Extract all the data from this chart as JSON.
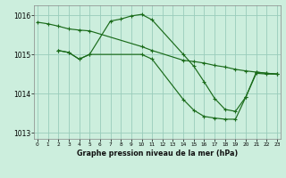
{
  "xlabel": "Graphe pression niveau de la mer (hPa)",
  "ylim": [
    1012.85,
    1016.25
  ],
  "xlim": [
    -0.3,
    23.3
  ],
  "yticks": [
    1013,
    1014,
    1015,
    1016
  ],
  "xticks": [
    0,
    1,
    2,
    3,
    4,
    5,
    6,
    7,
    8,
    9,
    10,
    11,
    12,
    13,
    14,
    15,
    16,
    17,
    18,
    19,
    20,
    21,
    22,
    23
  ],
  "background_color": "#cceedd",
  "grid_color": "#99ccbb",
  "line_color": "#1a6b1a",
  "series": [
    {
      "x": [
        0,
        1,
        2,
        3,
        4,
        5,
        10,
        11,
        14,
        15,
        16,
        17,
        18,
        19,
        20,
        21,
        22,
        23
      ],
      "y": [
        1015.82,
        1015.78,
        1015.72,
        1015.65,
        1015.62,
        1015.6,
        1015.2,
        1015.1,
        1014.85,
        1014.82,
        1014.78,
        1014.72,
        1014.68,
        1014.62,
        1014.58,
        1014.55,
        1014.52,
        1014.5
      ]
    },
    {
      "x": [
        2,
        3,
        4,
        5,
        7,
        8,
        9,
        10,
        11,
        14,
        15,
        16,
        17,
        18,
        19,
        20,
        21,
        22,
        23
      ],
      "y": [
        1015.1,
        1015.05,
        1014.88,
        1015.0,
        1015.85,
        1015.9,
        1015.98,
        1016.02,
        1015.88,
        1015.0,
        1014.7,
        1014.3,
        1013.88,
        1013.6,
        1013.55,
        1013.92,
        1014.55,
        1014.52,
        1014.5
      ]
    },
    {
      "x": [
        2,
        3,
        4,
        5,
        10,
        11,
        14,
        15,
        16,
        17,
        18,
        19,
        20,
        21,
        22,
        23
      ],
      "y": [
        1015.1,
        1015.05,
        1014.88,
        1015.0,
        1015.0,
        1014.88,
        1013.85,
        1013.58,
        1013.42,
        1013.38,
        1013.35,
        1013.35,
        1013.92,
        1014.52,
        1014.5,
        1014.5
      ]
    }
  ]
}
